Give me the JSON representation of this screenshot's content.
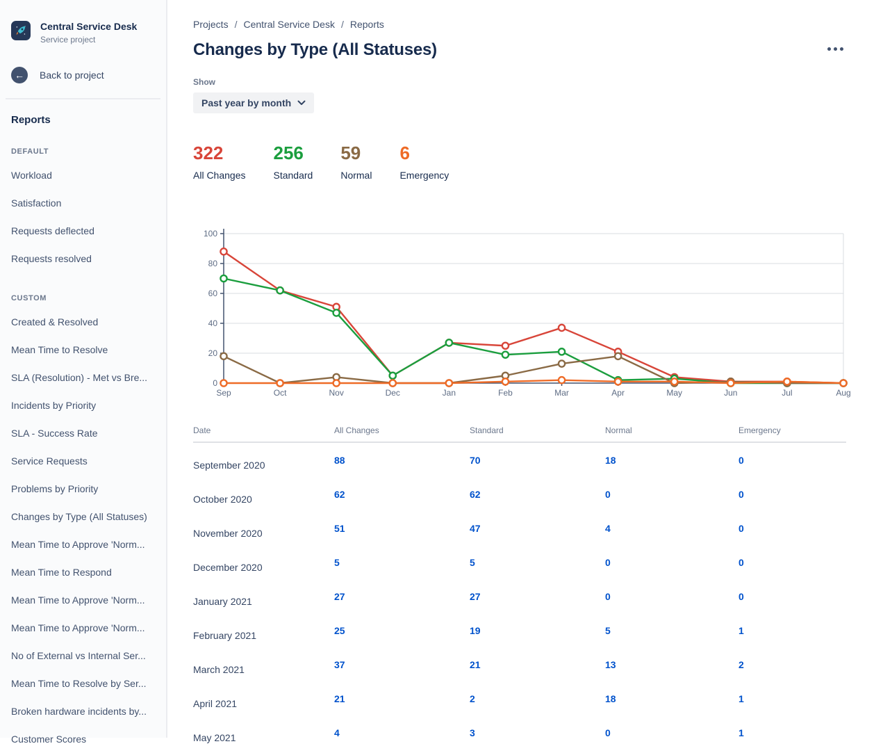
{
  "sidebar": {
    "project_name": "Central Service Desk",
    "project_type": "Service project",
    "back_label": "Back to project",
    "reports_heading": "Reports",
    "groups": [
      {
        "label": "DEFAULT",
        "items": [
          "Workload",
          "Satisfaction",
          "Requests deflected",
          "Requests resolved"
        ]
      },
      {
        "label": "CUSTOM",
        "items": [
          "Created & Resolved",
          "Mean Time to Resolve",
          "SLA (Resolution) - Met vs Bre...",
          "Incidents by Priority",
          "SLA - Success Rate",
          "Service Requests",
          "Problems by Priority",
          "Changes by Type (All Statuses)",
          "Mean Time to Approve 'Norm...",
          "Mean Time to Respond",
          "Mean Time to Approve 'Norm...",
          "Mean Time to Approve 'Norm...",
          "No of External vs Internal Ser...",
          "Mean Time to Resolve by Ser...",
          "Broken hardware incidents by...",
          "Customer Scores"
        ]
      }
    ]
  },
  "breadcrumb": [
    "Projects",
    "Central Service Desk",
    "Reports"
  ],
  "page_title": "Changes by Type (All Statuses)",
  "more_menu": "more-actions",
  "show_label": "Show",
  "period_dropdown": {
    "selected": "Past year by month"
  },
  "colors": {
    "all_changes": "#d84539",
    "standard": "#1b9e3e",
    "normal": "#8a6a45",
    "emergency": "#ee6b27",
    "link": "#0052cc",
    "axis": "#42526e",
    "grid": "#d9dce1"
  },
  "stats": [
    {
      "value": "322",
      "label": "All Changes",
      "color": "#d84539"
    },
    {
      "value": "256",
      "label": "Standard",
      "color": "#1b9e3e"
    },
    {
      "value": "59",
      "label": "Normal",
      "color": "#8a6a45"
    },
    {
      "value": "6",
      "label": "Emergency",
      "color": "#ee6b27"
    }
  ],
  "chart_data": {
    "type": "line",
    "x": [
      "Sep",
      "Oct",
      "Nov",
      "Dec",
      "Jan",
      "Feb",
      "Mar",
      "Apr",
      "May",
      "Jun",
      "Jul",
      "Aug"
    ],
    "series": [
      {
        "name": "All Changes",
        "color": "#d84539",
        "values": [
          88,
          62,
          51,
          5,
          27,
          25,
          37,
          21,
          4,
          1,
          1,
          0
        ]
      },
      {
        "name": "Standard",
        "color": "#1b9e3e",
        "values": [
          70,
          62,
          47,
          5,
          27,
          19,
          21,
          2,
          3,
          0,
          0,
          0
        ]
      },
      {
        "name": "Normal",
        "color": "#8a6a45",
        "values": [
          18,
          0,
          4,
          0,
          0,
          5,
          13,
          18,
          0,
          1,
          0,
          0
        ]
      },
      {
        "name": "Emergency",
        "color": "#ee6b27",
        "values": [
          0,
          0,
          0,
          0,
          0,
          1,
          2,
          1,
          1,
          0,
          1,
          0
        ]
      }
    ],
    "ylim": [
      0,
      100
    ],
    "yticks": [
      0,
      20,
      40,
      60,
      80,
      100
    ],
    "grid": true,
    "legend": "none",
    "markers": "open-circle"
  },
  "table": {
    "headers": [
      "Date",
      "All Changes",
      "Standard",
      "Normal",
      "Emergency"
    ],
    "rows": [
      {
        "date": "September 2020",
        "values": [
          "88",
          "70",
          "18",
          "0"
        ]
      },
      {
        "date": "October 2020",
        "values": [
          "62",
          "62",
          "0",
          "0"
        ]
      },
      {
        "date": "November 2020",
        "values": [
          "51",
          "47",
          "4",
          "0"
        ]
      },
      {
        "date": "December 2020",
        "values": [
          "5",
          "5",
          "0",
          "0"
        ]
      },
      {
        "date": "January 2021",
        "values": [
          "27",
          "27",
          "0",
          "0"
        ]
      },
      {
        "date": "February 2021",
        "values": [
          "25",
          "19",
          "5",
          "1"
        ]
      },
      {
        "date": "March 2021",
        "values": [
          "37",
          "21",
          "13",
          "2"
        ]
      },
      {
        "date": "April 2021",
        "values": [
          "21",
          "2",
          "18",
          "1"
        ]
      },
      {
        "date": "May 2021",
        "values": [
          "4",
          "3",
          "0",
          "1"
        ]
      }
    ]
  }
}
